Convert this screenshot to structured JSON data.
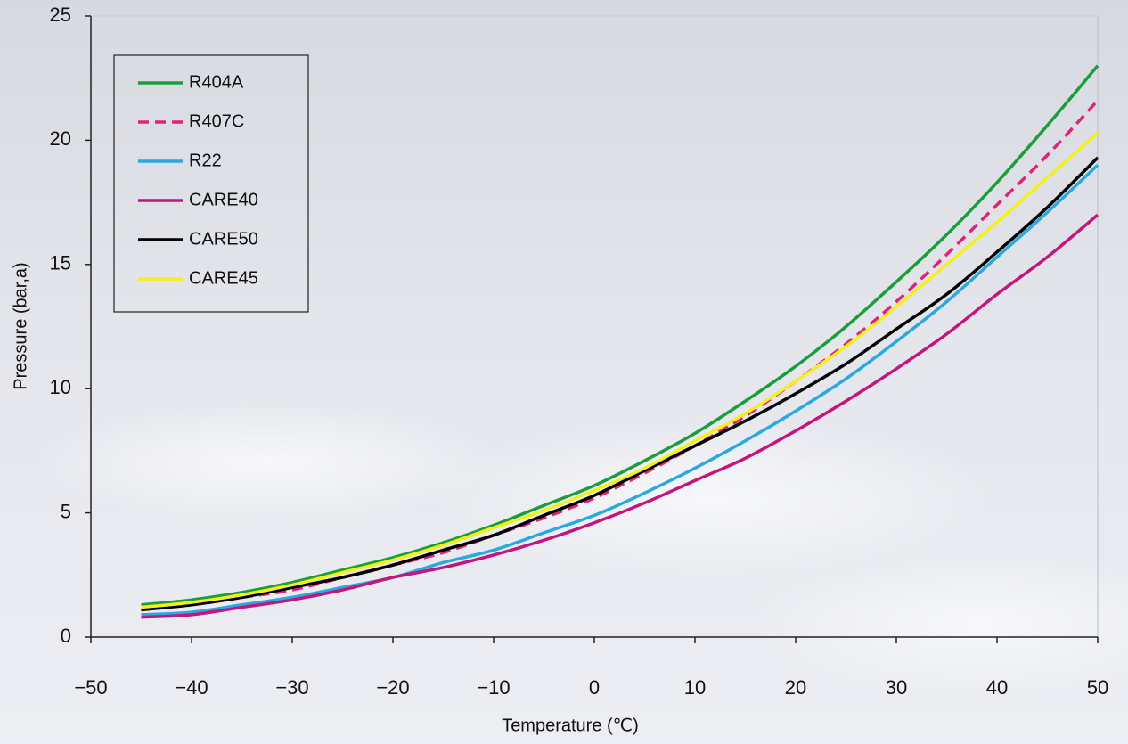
{
  "chart_data": {
    "type": "line",
    "x_label": "Temperature (℃)",
    "y_label": "Pressure (bar,a)",
    "x": [
      -45,
      -40,
      -35,
      -30,
      -25,
      -20,
      -15,
      -10,
      -5,
      0,
      5,
      10,
      15,
      20,
      25,
      30,
      35,
      40,
      45,
      50
    ],
    "series": [
      {
        "name": "R404A",
        "color": "#1a9e3c",
        "values": [
          1.3,
          1.5,
          1.8,
          2.2,
          2.7,
          3.2,
          3.8,
          4.5,
          5.3,
          6.1,
          7.1,
          8.2,
          9.5,
          10.9,
          12.5,
          14.3,
          16.2,
          18.3,
          20.6,
          23.0
        ]
      },
      {
        "name": "R407C",
        "color": "#e0237a",
        "line_style": "dashed",
        "values": [
          1.1,
          1.3,
          1.6,
          1.9,
          2.4,
          2.9,
          3.4,
          4.1,
          4.8,
          5.6,
          6.6,
          7.7,
          8.9,
          10.3,
          11.8,
          13.5,
          15.4,
          17.4,
          19.4,
          21.6
        ]
      },
      {
        "name": "R22",
        "color": "#2aa8e0",
        "values": [
          0.9,
          1.0,
          1.3,
          1.6,
          2.0,
          2.4,
          3.0,
          3.5,
          4.2,
          4.9,
          5.8,
          6.8,
          7.9,
          9.1,
          10.4,
          11.9,
          13.5,
          15.3,
          17.1,
          19.0
        ]
      },
      {
        "name": "CARE40",
        "color": "#c4147e",
        "values": [
          0.8,
          0.9,
          1.2,
          1.5,
          1.9,
          2.4,
          2.8,
          3.3,
          3.9,
          4.6,
          5.4,
          6.3,
          7.2,
          8.3,
          9.5,
          10.8,
          12.2,
          13.8,
          15.3,
          17.0
        ]
      },
      {
        "name": "CARE50",
        "color": "#000000",
        "values": [
          1.1,
          1.3,
          1.6,
          2.0,
          2.4,
          2.9,
          3.5,
          4.1,
          4.9,
          5.7,
          6.7,
          7.7,
          8.7,
          9.8,
          11.0,
          12.4,
          13.8,
          15.5,
          17.3,
          19.3
        ]
      },
      {
        "name": "CARE45",
        "color": "#f5ef1a",
        "values": [
          1.2,
          1.4,
          1.7,
          2.1,
          2.6,
          3.1,
          3.7,
          4.4,
          5.1,
          5.9,
          6.8,
          7.9,
          9.0,
          10.3,
          11.7,
          13.3,
          15.0,
          16.7,
          18.5,
          20.3
        ]
      }
    ],
    "xlim": [
      -50,
      50
    ],
    "xticks": [
      {
        "value": -50,
        "label": "−50"
      },
      {
        "value": -40,
        "label": "−40"
      },
      {
        "value": -30,
        "label": "−30"
      },
      {
        "value": -20,
        "label": "−20"
      },
      {
        "value": -10,
        "label": "−10"
      },
      0,
      10,
      20,
      30,
      40,
      50
    ],
    "ylim": [
      0,
      25
    ],
    "yticks": [
      0,
      5,
      10,
      15,
      20,
      25
    ],
    "legend": "upper-left"
  }
}
